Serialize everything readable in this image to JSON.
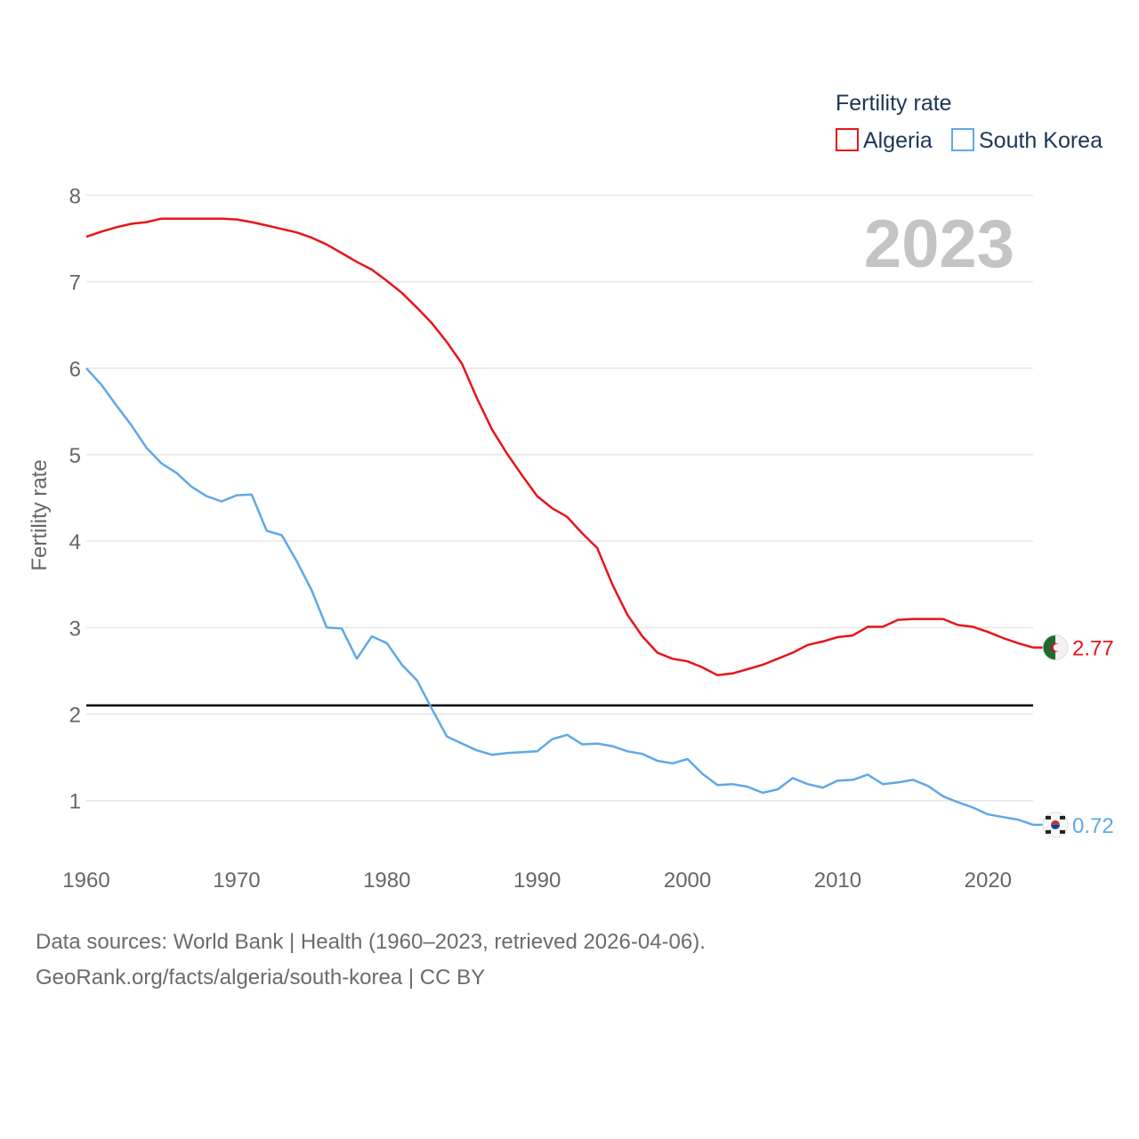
{
  "chart_data": {
    "type": "line",
    "ylabel": "Fertility rate",
    "xlabel": "",
    "xlim": [
      1960,
      2023
    ],
    "ylim": [
      0.4,
      8.2
    ],
    "y_ticks": [
      1,
      2,
      3,
      4,
      5,
      6,
      7,
      8
    ],
    "x_ticks": [
      1960,
      1970,
      1980,
      1990,
      2000,
      2010,
      2020
    ],
    "grid": true,
    "legend_position": "top-right",
    "legend_title": "Fertility rate",
    "year_label": "2023",
    "reference_line": {
      "y": 2.1,
      "color": "#000000"
    },
    "x": [
      1960,
      1961,
      1962,
      1963,
      1964,
      1965,
      1966,
      1967,
      1968,
      1969,
      1970,
      1971,
      1972,
      1973,
      1974,
      1975,
      1976,
      1977,
      1978,
      1979,
      1980,
      1981,
      1982,
      1983,
      1984,
      1985,
      1986,
      1987,
      1988,
      1989,
      1990,
      1991,
      1992,
      1993,
      1994,
      1995,
      1996,
      1997,
      1998,
      1999,
      2000,
      2001,
      2002,
      2003,
      2004,
      2005,
      2006,
      2007,
      2008,
      2009,
      2010,
      2011,
      2012,
      2013,
      2014,
      2015,
      2016,
      2017,
      2018,
      2019,
      2020,
      2021,
      2022,
      2023
    ],
    "series": [
      {
        "name": "Algeria",
        "color": "#e8141b",
        "end_label": "2.77",
        "flag": "algeria-flag",
        "values": [
          7.52,
          7.58,
          7.63,
          7.67,
          7.69,
          7.73,
          7.73,
          7.73,
          7.73,
          7.73,
          7.72,
          7.69,
          7.65,
          7.61,
          7.57,
          7.51,
          7.43,
          7.33,
          7.23,
          7.14,
          7.01,
          6.87,
          6.7,
          6.52,
          6.3,
          6.05,
          5.65,
          5.29,
          5.01,
          4.76,
          4.52,
          4.38,
          4.28,
          4.09,
          3.92,
          3.5,
          3.15,
          2.9,
          2.71,
          2.64,
          2.61,
          2.54,
          2.45,
          2.47,
          2.52,
          2.57,
          2.64,
          2.71,
          2.8,
          2.84,
          2.89,
          2.91,
          3.01,
          3.01,
          3.09,
          3.1,
          3.1,
          3.1,
          3.03,
          3.01,
          2.95,
          2.88,
          2.82,
          2.77
        ]
      },
      {
        "name": "South Korea",
        "color": "#5fa8e8",
        "end_label": "0.72",
        "flag": "south-korea-flag",
        "values": [
          6.0,
          5.81,
          5.57,
          5.34,
          5.08,
          4.9,
          4.79,
          4.63,
          4.52,
          4.46,
          4.53,
          4.54,
          4.12,
          4.07,
          3.77,
          3.43,
          3.0,
          2.99,
          2.64,
          2.9,
          2.82,
          2.57,
          2.39,
          2.06,
          1.74,
          1.66,
          1.58,
          1.53,
          1.55,
          1.56,
          1.57,
          1.71,
          1.76,
          1.65,
          1.66,
          1.63,
          1.57,
          1.54,
          1.46,
          1.43,
          1.48,
          1.31,
          1.18,
          1.19,
          1.16,
          1.09,
          1.13,
          1.26,
          1.19,
          1.15,
          1.23,
          1.24,
          1.3,
          1.19,
          1.21,
          1.24,
          1.17,
          1.05,
          0.98,
          0.92,
          0.84,
          0.81,
          0.78,
          0.72
        ]
      }
    ]
  },
  "footer": {
    "sources": "Data sources: World Bank | Health (1960–2023, retrieved 2026-04-06).",
    "link": "GeoRank.org/facts/algeria/south-korea | CC BY"
  }
}
